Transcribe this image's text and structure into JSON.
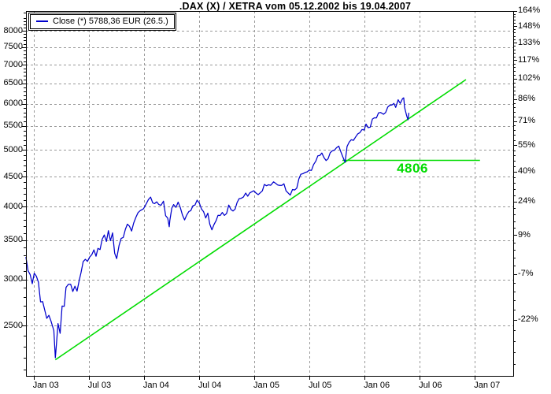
{
  "colors": {
    "series_blue": "#0000cc",
    "accent_green": "#00dc00",
    "grid_gray": "#999999",
    "frame_black": "#000000",
    "background": "#ffffff"
  },
  "chart_data": {
    "type": "line",
    "title": ".DAX (X) / XETRA vom 05.12.2002 bis 19.04.2007",
    "yscale": "log",
    "ylim": [
      2050,
      8650
    ],
    "xlim": [
      "2002-12-05",
      "2007-04-19"
    ],
    "grid": true,
    "legend_position": "top-left",
    "x_ticks": [
      {
        "date": "2003-01-01",
        "label": "Jan 03"
      },
      {
        "date": "2003-07-01",
        "label": "Jul 03"
      },
      {
        "date": "2004-01-01",
        "label": "Jan 04"
      },
      {
        "date": "2004-07-01",
        "label": "Jul 04"
      },
      {
        "date": "2005-01-01",
        "label": "Jan 05"
      },
      {
        "date": "2005-07-01",
        "label": "Jul 05"
      },
      {
        "date": "2006-01-01",
        "label": "Jan 06"
      },
      {
        "date": "2006-07-01",
        "label": "Jul 06"
      },
      {
        "date": "2007-01-01",
        "label": "Jan 07"
      }
    ],
    "y_left_ticks": [
      8000,
      7500,
      7000,
      6500,
      6000,
      5500,
      5000,
      4500,
      4000,
      3500,
      3000,
      2500
    ],
    "y_right_ticks": [
      {
        "label": "164%",
        "pct": 164.0
      },
      {
        "label": "148%",
        "pct": 148.5
      },
      {
        "label": "133%",
        "pct": 133.0
      },
      {
        "label": "117%",
        "pct": 117.5
      },
      {
        "label": "102%",
        "pct": 102.0
      },
      {
        "label": "86%",
        "pct": 86.5
      },
      {
        "label": "71%",
        "pct": 71.0
      },
      {
        "label": "55%",
        "pct": 55.5
      },
      {
        "label": "40%",
        "pct": 40.0
      },
      {
        "label": "24%",
        "pct": 24.5
      },
      {
        "label": "9%",
        "pct": 9.0
      },
      {
        "label": "-7%",
        "pct": -6.5
      },
      {
        "label": "-22%",
        "pct": -22.0
      }
    ],
    "series": [
      {
        "name": "Close (*) 5788,36 EUR (26.5.)",
        "color": "#0000cc",
        "points": [
          [
            "2002-12-06",
            3278
          ],
          [
            "2002-12-13",
            3106
          ],
          [
            "2002-12-20",
            3058
          ],
          [
            "2002-12-27",
            2950
          ],
          [
            "2003-01-03",
            3074
          ],
          [
            "2003-01-10",
            3038
          ],
          [
            "2003-01-17",
            2967
          ],
          [
            "2003-01-24",
            2745
          ],
          [
            "2003-01-31",
            2748
          ],
          [
            "2003-02-07",
            2662
          ],
          [
            "2003-02-14",
            2572
          ],
          [
            "2003-02-21",
            2604
          ],
          [
            "2003-02-28",
            2547
          ],
          [
            "2003-03-07",
            2451
          ],
          [
            "2003-03-12",
            2202
          ],
          [
            "2003-03-14",
            2259
          ],
          [
            "2003-03-21",
            2520
          ],
          [
            "2003-03-28",
            2425
          ],
          [
            "2003-04-04",
            2700
          ],
          [
            "2003-04-11",
            2697
          ],
          [
            "2003-04-17",
            2908
          ],
          [
            "2003-04-25",
            2942
          ],
          [
            "2003-05-02",
            2942
          ],
          [
            "2003-05-09",
            2860
          ],
          [
            "2003-05-16",
            2920
          ],
          [
            "2003-05-23",
            2865
          ],
          [
            "2003-05-30",
            2982
          ],
          [
            "2003-06-06",
            3085
          ],
          [
            "2003-06-13",
            3219
          ],
          [
            "2003-06-20",
            3247
          ],
          [
            "2003-06-27",
            3221
          ],
          [
            "2003-07-04",
            3276
          ],
          [
            "2003-07-11",
            3307
          ],
          [
            "2003-07-18",
            3370
          ],
          [
            "2003-07-25",
            3287
          ],
          [
            "2003-08-01",
            3390
          ],
          [
            "2003-08-08",
            3375
          ],
          [
            "2003-08-15",
            3515
          ],
          [
            "2003-08-22",
            3575
          ],
          [
            "2003-08-29",
            3484
          ],
          [
            "2003-09-05",
            3635
          ],
          [
            "2003-09-12",
            3494
          ],
          [
            "2003-09-19",
            3605
          ],
          [
            "2003-09-26",
            3326
          ],
          [
            "2003-10-02",
            3256
          ],
          [
            "2003-10-10",
            3432
          ],
          [
            "2003-10-17",
            3526
          ],
          [
            "2003-10-24",
            3540
          ],
          [
            "2003-10-31",
            3655
          ],
          [
            "2003-11-07",
            3730
          ],
          [
            "2003-11-14",
            3700
          ],
          [
            "2003-11-21",
            3630
          ],
          [
            "2003-11-28",
            3746
          ],
          [
            "2003-12-05",
            3835
          ],
          [
            "2003-12-12",
            3904
          ],
          [
            "2003-12-19",
            3935
          ],
          [
            "2003-12-30",
            3965
          ],
          [
            "2004-01-09",
            4045
          ],
          [
            "2004-01-16",
            4111
          ],
          [
            "2004-01-23",
            4151
          ],
          [
            "2004-01-30",
            4058
          ],
          [
            "2004-02-06",
            4045
          ],
          [
            "2004-02-13",
            4074
          ],
          [
            "2004-02-20",
            4030
          ],
          [
            "2004-02-27",
            4018
          ],
          [
            "2004-03-05",
            4084
          ],
          [
            "2004-03-12",
            3857
          ],
          [
            "2004-03-19",
            3819
          ],
          [
            "2004-03-24",
            3692
          ],
          [
            "2004-03-26",
            3788
          ],
          [
            "2004-04-02",
            3975
          ],
          [
            "2004-04-08",
            4030
          ],
          [
            "2004-04-16",
            3985
          ],
          [
            "2004-04-23",
            4070
          ],
          [
            "2004-04-30",
            3985
          ],
          [
            "2004-05-07",
            3867
          ],
          [
            "2004-05-14",
            3793
          ],
          [
            "2004-05-21",
            3867
          ],
          [
            "2004-05-28",
            3921
          ],
          [
            "2004-06-04",
            3935
          ],
          [
            "2004-06-11",
            4012
          ],
          [
            "2004-06-18",
            4023
          ],
          [
            "2004-06-25",
            4101
          ],
          [
            "2004-07-02",
            4053
          ],
          [
            "2004-07-09",
            3959
          ],
          [
            "2004-07-16",
            3917
          ],
          [
            "2004-07-23",
            3823
          ],
          [
            "2004-07-30",
            3896
          ],
          [
            "2004-08-06",
            3731
          ],
          [
            "2004-08-13",
            3647
          ],
          [
            "2004-08-20",
            3725
          ],
          [
            "2004-08-27",
            3785
          ],
          [
            "2004-09-03",
            3864
          ],
          [
            "2004-09-10",
            3860
          ],
          [
            "2004-09-17",
            3907
          ],
          [
            "2004-09-24",
            3861
          ],
          [
            "2004-10-01",
            3893
          ],
          [
            "2004-10-08",
            4023
          ],
          [
            "2004-10-15",
            3955
          ],
          [
            "2004-10-22",
            3929
          ],
          [
            "2004-10-29",
            3960
          ],
          [
            "2004-11-05",
            4063
          ],
          [
            "2004-11-12",
            4126
          ],
          [
            "2004-11-19",
            4132
          ],
          [
            "2004-11-26",
            4151
          ],
          [
            "2004-12-03",
            4218
          ],
          [
            "2004-12-10",
            4165
          ],
          [
            "2004-12-17",
            4221
          ],
          [
            "2004-12-30",
            4256
          ],
          [
            "2005-01-07",
            4217
          ],
          [
            "2005-01-14",
            4192
          ],
          [
            "2005-01-21",
            4222
          ],
          [
            "2005-01-28",
            4254
          ],
          [
            "2005-02-04",
            4363
          ],
          [
            "2005-02-11",
            4341
          ],
          [
            "2005-02-18",
            4358
          ],
          [
            "2005-02-25",
            4350
          ],
          [
            "2005-03-04",
            4408
          ],
          [
            "2005-03-11",
            4383
          ],
          [
            "2005-03-18",
            4353
          ],
          [
            "2005-03-24",
            4348
          ],
          [
            "2005-04-01",
            4348
          ],
          [
            "2005-04-08",
            4375
          ],
          [
            "2005-04-15",
            4254
          ],
          [
            "2005-04-22",
            4219
          ],
          [
            "2005-04-29",
            4184
          ],
          [
            "2005-05-06",
            4277
          ],
          [
            "2005-05-13",
            4269
          ],
          [
            "2005-05-20",
            4300
          ],
          [
            "2005-05-27",
            4460
          ],
          [
            "2005-06-03",
            4542
          ],
          [
            "2005-06-10",
            4553
          ],
          [
            "2005-06-17",
            4574
          ],
          [
            "2005-06-24",
            4586
          ],
          [
            "2005-07-01",
            4617
          ],
          [
            "2005-07-08",
            4613
          ],
          [
            "2005-07-15",
            4720
          ],
          [
            "2005-07-22",
            4780
          ],
          [
            "2005-07-29",
            4886
          ],
          [
            "2005-08-05",
            4892
          ],
          [
            "2005-08-12",
            4939
          ],
          [
            "2005-08-19",
            4851
          ],
          [
            "2005-08-26",
            4796
          ],
          [
            "2005-09-02",
            4830
          ],
          [
            "2005-09-09",
            4946
          ],
          [
            "2005-09-16",
            4983
          ],
          [
            "2005-09-23",
            4993
          ],
          [
            "2005-09-30",
            5044
          ],
          [
            "2005-10-07",
            5076
          ],
          [
            "2005-10-14",
            4960
          ],
          [
            "2005-10-21",
            4858
          ],
          [
            "2005-10-28",
            4762
          ],
          [
            "2005-11-04",
            5068
          ],
          [
            "2005-11-11",
            5156
          ],
          [
            "2005-11-18",
            5206
          ],
          [
            "2005-11-25",
            5193
          ],
          [
            "2005-12-02",
            5262
          ],
          [
            "2005-12-09",
            5327
          ],
          [
            "2005-12-16",
            5353
          ],
          [
            "2005-12-23",
            5419
          ],
          [
            "2005-12-30",
            5408
          ],
          [
            "2006-01-06",
            5536
          ],
          [
            "2006-01-13",
            5460
          ],
          [
            "2006-01-20",
            5471
          ],
          [
            "2006-01-27",
            5647
          ],
          [
            "2006-02-03",
            5675
          ],
          [
            "2006-02-10",
            5674
          ],
          [
            "2006-02-17",
            5789
          ],
          [
            "2006-02-24",
            5796
          ],
          [
            "2006-03-03",
            5755
          ],
          [
            "2006-03-10",
            5796
          ],
          [
            "2006-03-17",
            5921
          ],
          [
            "2006-03-24",
            5965
          ],
          [
            "2006-03-31",
            5970
          ],
          [
            "2006-04-07",
            6009
          ],
          [
            "2006-04-13",
            5914
          ],
          [
            "2006-04-21",
            6095
          ],
          [
            "2006-04-28",
            6009
          ],
          [
            "2006-05-05",
            6122
          ],
          [
            "2006-05-09",
            6140
          ],
          [
            "2006-05-12",
            5912
          ],
          [
            "2006-05-19",
            5719
          ],
          [
            "2006-05-23",
            5632
          ],
          [
            "2006-05-26",
            5788.36
          ]
        ]
      }
    ],
    "overlays": [
      {
        "type": "trendline",
        "color": "#00dc00",
        "from": [
          "2003-03-12",
          2184
        ],
        "to": [
          "2006-12-02",
          6600
        ]
      },
      {
        "type": "hline",
        "color": "#00dc00",
        "value": 4806,
        "from": "2005-10-19",
        "to": "2007-01-18",
        "label": "4806"
      }
    ]
  }
}
